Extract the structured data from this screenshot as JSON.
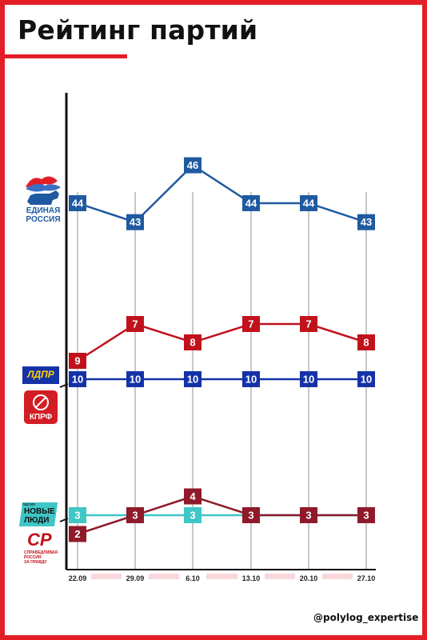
{
  "title": "Рейтинг партий",
  "handle": "@polylog_expertise",
  "logos": {
    "er": {
      "line1": "ЕДИНАЯ",
      "line2": "РОССИЯ",
      "icon": "bear-flag-icon"
    },
    "ldpr": {
      "text": "ЛДПР"
    },
    "kprf": {
      "text": "КПРФ",
      "icon": "hammer-sickle-icon"
    },
    "nl": {
      "line1": "НОВЫЕ",
      "line2": "ЛЮДИ",
      "tag": "партия"
    },
    "sr": {
      "text": "СР",
      "sub1": "СПРАВЕДЛИВАЯ",
      "sub2": "РОССИЯ",
      "sub3": "ЗА ПРАВДУ"
    }
  },
  "colors": {
    "frame": "#e41e26",
    "er": "#1f5aa0",
    "ldpr": "#1432a8",
    "kprf": "#c1121c",
    "nl": "#3fc6c6",
    "sr": "#8e1a2a",
    "grid": "#c8c8c8",
    "band": "#f9d7dc"
  },
  "chart_data": {
    "type": "line",
    "title": "Рейтинг партий",
    "categories": [
      "22.09",
      "29.09",
      "6.10",
      "13.10",
      "20.10",
      "27.10"
    ],
    "series": [
      {
        "name": "Единая Россия",
        "values": [
          44,
          43,
          46,
          44,
          44,
          43
        ]
      },
      {
        "name": "ЛДПР",
        "values": [
          10,
          10,
          10,
          10,
          10,
          10
        ]
      },
      {
        "name": "КПРФ",
        "values": [
          9,
          7,
          8,
          7,
          7,
          8
        ]
      },
      {
        "name": "Новые люди",
        "values": [
          3,
          3,
          3,
          3,
          3,
          3
        ]
      },
      {
        "name": "Справедливая Россия",
        "values": [
          2,
          3,
          4,
          3,
          3,
          3
        ]
      }
    ],
    "grid": true
  }
}
